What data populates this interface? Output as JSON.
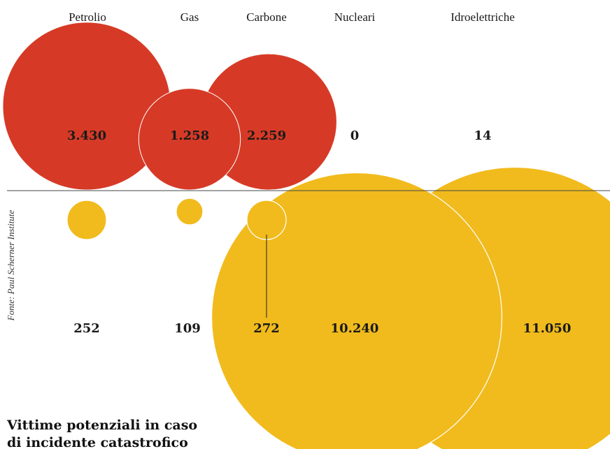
{
  "source": "Fonte: Paul Scherner Institute",
  "chart_data": {
    "type": "bubble",
    "categories": [
      "Petrolio",
      "Gas",
      "Carbone",
      "Nucleari",
      "Idroelettriche"
    ],
    "series": [
      {
        "values": [
          3430,
          1258,
          2259,
          0,
          14
        ],
        "value_labels": [
          "3.430",
          "1.258",
          "2.259",
          "0",
          "14"
        ],
        "color": "#d63a26"
      },
      {
        "values": [
          252,
          109,
          272,
          10240,
          11050
        ],
        "value_labels": [
          "252",
          "109",
          "272",
          "10.240",
          "11.050"
        ],
        "color": "#f1bb1d"
      }
    ],
    "title_lines": [
      "Vittime potenziali in caso",
      "di incidente catastrofico"
    ]
  }
}
